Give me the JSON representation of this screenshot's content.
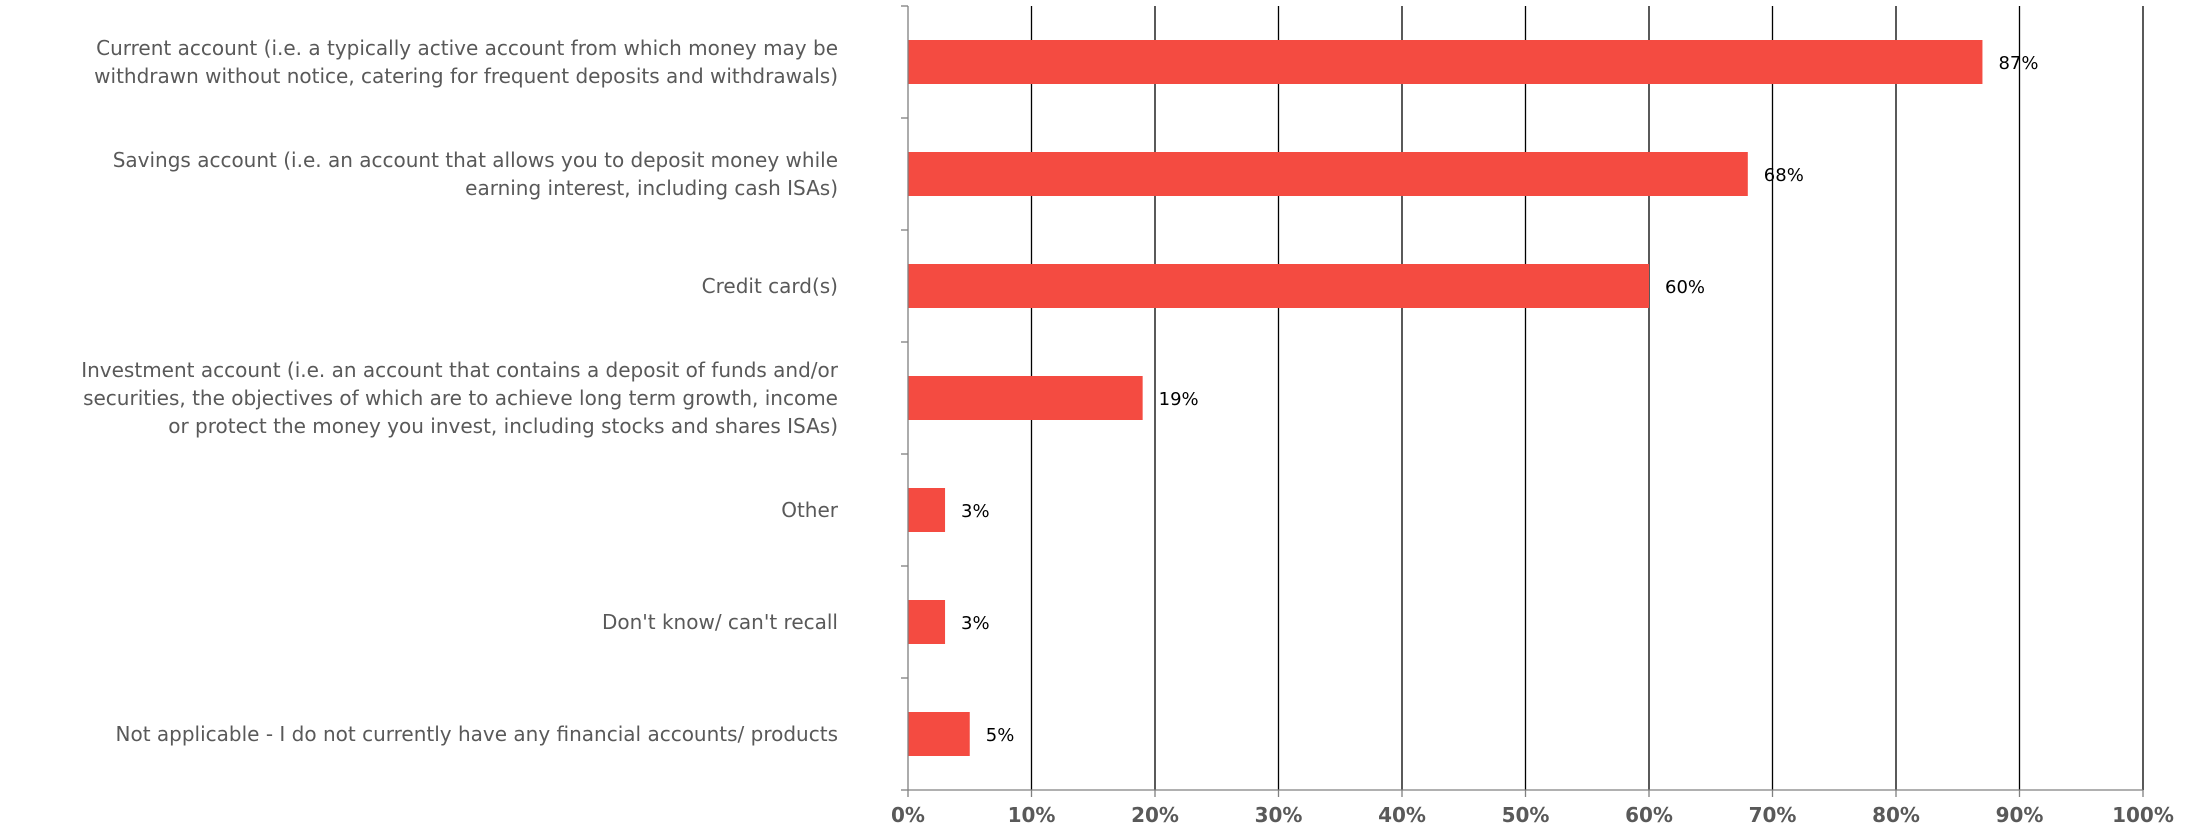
{
  "chart_data": {
    "type": "bar",
    "orientation": "horizontal",
    "categories": [
      "Current account (i.e. a typically active account from which money may be withdrawn without notice, catering for frequent deposits and withdrawals)",
      "Savings account (i.e. an account that allows you to deposit money while earning interest, including cash ISAs)",
      "Credit card(s)",
      "Investment account (i.e. an account that contains a deposit of funds and/or securities, the objectives of which are to achieve long term growth, income or protect the money you invest, including stocks and shares ISAs)",
      "Other",
      "Don't know/ can't recall",
      "Not applicable - I do not currently have any financial accounts/ products"
    ],
    "category_lines": [
      [
        "Current account (i.e. a typically active account from which money may be",
        "withdrawn without notice, catering for frequent deposits and withdrawals)"
      ],
      [
        "Savings account (i.e. an account that allows you to deposit money while",
        "earning interest, including cash ISAs)"
      ],
      [
        "Credit card(s)"
      ],
      [
        "Investment account (i.e. an account that contains a deposit of funds and/or",
        "securities, the objectives of which are to achieve long term growth, income",
        "or protect the money you invest, including stocks and shares ISAs)"
      ],
      [
        "Other"
      ],
      [
        "Don't know/ can't recall"
      ],
      [
        "Not applicable - I do not currently have any financial accounts/ products"
      ]
    ],
    "values": [
      87,
      68,
      60,
      19,
      3,
      3,
      5
    ],
    "value_labels": [
      "87%",
      "68%",
      "60%",
      "19%",
      "3%",
      "3%",
      "5%"
    ],
    "xlim": [
      0,
      100
    ],
    "x_ticks": [
      "0%",
      "10%",
      "20%",
      "30%",
      "40%",
      "50%",
      "60%",
      "70%",
      "80%",
      "90%",
      "100%"
    ],
    "grid": true,
    "legend": "none",
    "bar_color": "#f44b41",
    "gridline_color": "#000000",
    "category_label_color": "#595959",
    "tick_label_color": "#595959"
  }
}
